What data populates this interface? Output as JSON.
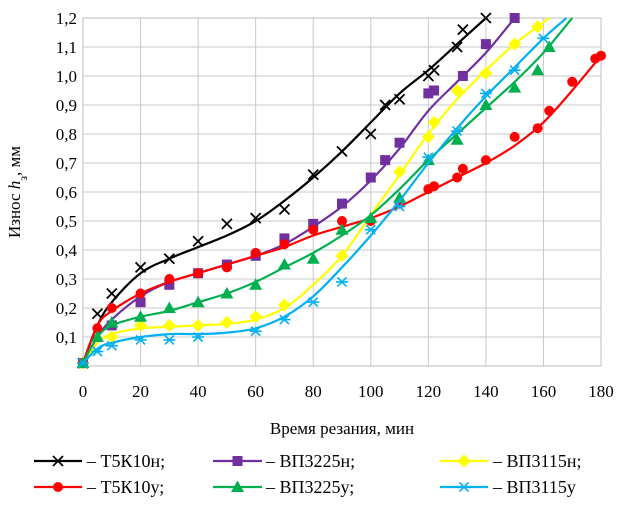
{
  "chart_data": {
    "type": "line",
    "xlabel": "Время резания, мин",
    "ylabel": "Износ h3, мм",
    "ylabel_parts": {
      "pre": "Износ ",
      "var": "h",
      "sub": "з",
      "post": ", мм"
    },
    "xlim": [
      0,
      180
    ],
    "ylim": [
      0,
      1.2
    ],
    "x_ticks": [
      0,
      20,
      40,
      60,
      80,
      100,
      120,
      140,
      160,
      180
    ],
    "x_tick_labels": [
      "0",
      "20",
      "40",
      "60",
      "80",
      "100",
      "120",
      "140",
      "160",
      "180"
    ],
    "y_ticks": [
      0.1,
      0.2,
      0.3,
      0.4,
      0.5,
      0.6,
      0.7,
      0.8,
      0.9,
      1.0,
      1.1,
      1.2
    ],
    "y_tick_labels": [
      "0,1",
      "0,2",
      "0,3",
      "0,4",
      "0,5",
      "0,6",
      "0,7",
      "0,8",
      "0,9",
      "1,0",
      "1,1",
      "1,2"
    ],
    "grid": true,
    "legend_position": "bottom",
    "series": [
      {
        "name": "– Т5К10н;",
        "color": "#000000",
        "marker": "x",
        "points": [
          [
            0,
            0.01
          ],
          [
            5,
            0.18
          ],
          [
            10,
            0.25
          ],
          [
            20,
            0.34
          ],
          [
            30,
            0.37
          ],
          [
            40,
            0.43
          ],
          [
            50,
            0.49
          ],
          [
            60,
            0.51
          ],
          [
            70,
            0.54
          ],
          [
            80,
            0.66
          ],
          [
            90,
            0.74
          ],
          [
            100,
            0.8
          ],
          [
            105,
            0.9
          ],
          [
            110,
            0.92
          ],
          [
            120,
            1.0
          ],
          [
            122,
            1.02
          ],
          [
            130,
            1.1
          ],
          [
            132,
            1.16
          ],
          [
            140,
            1.2
          ]
        ],
        "curve": [
          [
            0,
            0.01
          ],
          [
            5,
            0.14
          ],
          [
            10,
            0.22
          ],
          [
            20,
            0.32
          ],
          [
            30,
            0.37
          ],
          [
            40,
            0.41
          ],
          [
            50,
            0.45
          ],
          [
            60,
            0.5
          ],
          [
            70,
            0.57
          ],
          [
            80,
            0.65
          ],
          [
            90,
            0.74
          ],
          [
            100,
            0.84
          ],
          [
            110,
            0.94
          ],
          [
            120,
            1.02
          ],
          [
            130,
            1.11
          ],
          [
            140,
            1.2
          ]
        ]
      },
      {
        "name": "– ВП3225н;",
        "color": "#7030a0",
        "marker": "square",
        "points": [
          [
            0,
            0.01
          ],
          [
            10,
            0.14
          ],
          [
            20,
            0.22
          ],
          [
            30,
            0.28
          ],
          [
            40,
            0.32
          ],
          [
            50,
            0.35
          ],
          [
            60,
            0.38
          ],
          [
            70,
            0.44
          ],
          [
            80,
            0.49
          ],
          [
            90,
            0.56
          ],
          [
            100,
            0.65
          ],
          [
            105,
            0.71
          ],
          [
            110,
            0.77
          ],
          [
            120,
            0.94
          ],
          [
            122,
            0.95
          ],
          [
            132,
            1.0
          ],
          [
            140,
            1.11
          ],
          [
            150,
            1.2
          ]
        ],
        "curve": [
          [
            0,
            0.01
          ],
          [
            5,
            0.1
          ],
          [
            10,
            0.16
          ],
          [
            20,
            0.24
          ],
          [
            30,
            0.29
          ],
          [
            40,
            0.32
          ],
          [
            50,
            0.35
          ],
          [
            60,
            0.38
          ],
          [
            70,
            0.42
          ],
          [
            80,
            0.48
          ],
          [
            90,
            0.55
          ],
          [
            100,
            0.64
          ],
          [
            110,
            0.75
          ],
          [
            120,
            0.88
          ],
          [
            130,
            0.98
          ],
          [
            140,
            1.08
          ],
          [
            150,
            1.2
          ]
        ]
      },
      {
        "name": "– ВП3115н;",
        "color": "#ffff00",
        "marker": "diamond",
        "points": [
          [
            0,
            0.01
          ],
          [
            10,
            0.1
          ],
          [
            20,
            0.14
          ],
          [
            30,
            0.14
          ],
          [
            40,
            0.14
          ],
          [
            50,
            0.15
          ],
          [
            60,
            0.17
          ],
          [
            70,
            0.21
          ],
          [
            90,
            0.38
          ],
          [
            110,
            0.67
          ],
          [
            120,
            0.79
          ],
          [
            122,
            0.84
          ],
          [
            130,
            0.95
          ],
          [
            140,
            1.01
          ],
          [
            150,
            1.11
          ],
          [
            158,
            1.17
          ]
        ],
        "curve": [
          [
            0,
            0.01
          ],
          [
            5,
            0.08
          ],
          [
            10,
            0.11
          ],
          [
            20,
            0.13
          ],
          [
            30,
            0.135
          ],
          [
            40,
            0.14
          ],
          [
            50,
            0.145
          ],
          [
            60,
            0.16
          ],
          [
            70,
            0.2
          ],
          [
            80,
            0.28
          ],
          [
            90,
            0.38
          ],
          [
            100,
            0.52
          ],
          [
            110,
            0.66
          ],
          [
            120,
            0.8
          ],
          [
            130,
            0.92
          ],
          [
            140,
            1.02
          ],
          [
            150,
            1.11
          ],
          [
            158,
            1.17
          ],
          [
            162,
            1.2
          ]
        ]
      },
      {
        "name": "– Т5К10у;",
        "color": "#ff0000",
        "marker": "circle",
        "points": [
          [
            0,
            0.01
          ],
          [
            5,
            0.13
          ],
          [
            10,
            0.2
          ],
          [
            20,
            0.25
          ],
          [
            30,
            0.3
          ],
          [
            40,
            0.32
          ],
          [
            50,
            0.34
          ],
          [
            60,
            0.39
          ],
          [
            70,
            0.42
          ],
          [
            80,
            0.47
          ],
          [
            90,
            0.5
          ],
          [
            100,
            0.5
          ],
          [
            110,
            0.56
          ],
          [
            120,
            0.61
          ],
          [
            122,
            0.62
          ],
          [
            130,
            0.65
          ],
          [
            132,
            0.68
          ],
          [
            140,
            0.71
          ],
          [
            150,
            0.79
          ],
          [
            158,
            0.82
          ],
          [
            162,
            0.88
          ],
          [
            170,
            0.98
          ],
          [
            178,
            1.06
          ],
          [
            180,
            1.07
          ]
        ],
        "curve": [
          [
            0,
            0.01
          ],
          [
            5,
            0.14
          ],
          [
            10,
            0.19
          ],
          [
            20,
            0.25
          ],
          [
            30,
            0.29
          ],
          [
            40,
            0.32
          ],
          [
            50,
            0.35
          ],
          [
            60,
            0.38
          ],
          [
            70,
            0.41
          ],
          [
            80,
            0.45
          ],
          [
            90,
            0.48
          ],
          [
            100,
            0.51
          ],
          [
            110,
            0.55
          ],
          [
            120,
            0.6
          ],
          [
            130,
            0.65
          ],
          [
            140,
            0.7
          ],
          [
            150,
            0.76
          ],
          [
            160,
            0.84
          ],
          [
            170,
            0.95
          ],
          [
            180,
            1.07
          ]
        ]
      },
      {
        "name": "– ВП3225у;",
        "color": "#00b050",
        "marker": "triangle",
        "points": [
          [
            0,
            0.01
          ],
          [
            5,
            0.1
          ],
          [
            10,
            0.15
          ],
          [
            20,
            0.17
          ],
          [
            30,
            0.2
          ],
          [
            40,
            0.22
          ],
          [
            50,
            0.25
          ],
          [
            60,
            0.28
          ],
          [
            70,
            0.35
          ],
          [
            80,
            0.37
          ],
          [
            90,
            0.47
          ],
          [
            100,
            0.51
          ],
          [
            110,
            0.58
          ],
          [
            120,
            0.71
          ],
          [
            130,
            0.78
          ],
          [
            140,
            0.9
          ],
          [
            150,
            0.96
          ],
          [
            158,
            1.02
          ],
          [
            162,
            1.1
          ]
        ],
        "curve": [
          [
            0,
            0.01
          ],
          [
            5,
            0.1
          ],
          [
            10,
            0.14
          ],
          [
            20,
            0.17
          ],
          [
            30,
            0.19
          ],
          [
            40,
            0.22
          ],
          [
            50,
            0.25
          ],
          [
            60,
            0.29
          ],
          [
            70,
            0.34
          ],
          [
            80,
            0.39
          ],
          [
            90,
            0.45
          ],
          [
            100,
            0.52
          ],
          [
            110,
            0.61
          ],
          [
            120,
            0.71
          ],
          [
            130,
            0.8
          ],
          [
            140,
            0.89
          ],
          [
            150,
            0.98
          ],
          [
            160,
            1.08
          ],
          [
            170,
            1.2
          ]
        ]
      },
      {
        "name": "– ВП3115у",
        "color": "#00b0f0",
        "marker": "asterisk",
        "points": [
          [
            0,
            0.01
          ],
          [
            5,
            0.05
          ],
          [
            10,
            0.07
          ],
          [
            20,
            0.09
          ],
          [
            30,
            0.09
          ],
          [
            40,
            0.1
          ],
          [
            60,
            0.12
          ],
          [
            70,
            0.16
          ],
          [
            80,
            0.22
          ],
          [
            90,
            0.29
          ],
          [
            100,
            0.47
          ],
          [
            110,
            0.55
          ],
          [
            120,
            0.72
          ],
          [
            130,
            0.81
          ],
          [
            140,
            0.94
          ],
          [
            150,
            1.02
          ],
          [
            160,
            1.13
          ]
        ],
        "curve": [
          [
            0,
            0.01
          ],
          [
            5,
            0.06
          ],
          [
            10,
            0.08
          ],
          [
            20,
            0.1
          ],
          [
            30,
            0.11
          ],
          [
            40,
            0.11
          ],
          [
            50,
            0.115
          ],
          [
            60,
            0.13
          ],
          [
            70,
            0.17
          ],
          [
            80,
            0.24
          ],
          [
            90,
            0.34
          ],
          [
            100,
            0.45
          ],
          [
            110,
            0.57
          ],
          [
            120,
            0.7
          ],
          [
            130,
            0.82
          ],
          [
            140,
            0.93
          ],
          [
            150,
            1.03
          ],
          [
            160,
            1.13
          ],
          [
            168,
            1.2
          ]
        ]
      }
    ]
  }
}
